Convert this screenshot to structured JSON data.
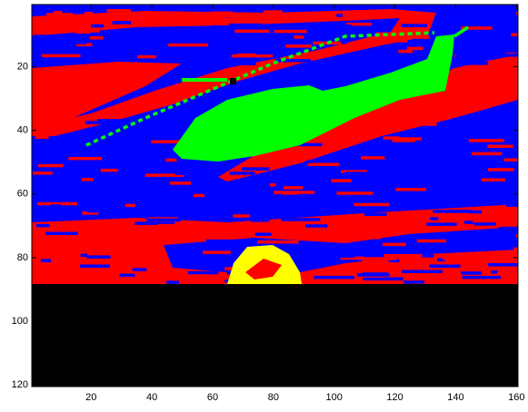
{
  "chart_data": {
    "type": "image",
    "xlim": [
      0.5,
      160.5
    ],
    "ylim": [
      0.5,
      120.5
    ],
    "y_reversed": true,
    "xticks": [
      20,
      40,
      60,
      80,
      100,
      120,
      140,
      160
    ],
    "yticks": [
      20,
      40,
      60,
      80,
      100,
      120
    ]
  }
}
